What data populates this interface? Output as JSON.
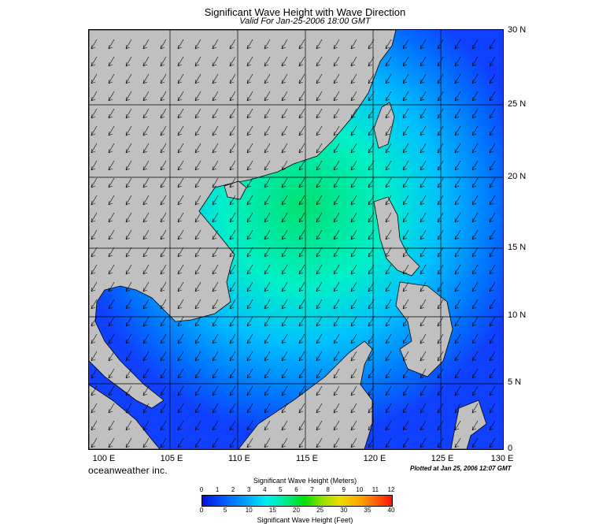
{
  "header": {
    "title": "Significant Wave Height with Wave Direction",
    "subtitle": "Valid For Jan-25-2006 18:00 GMT"
  },
  "map": {
    "lon_labels": [
      "100 E",
      "105 E",
      "110 E",
      "115 E",
      "120 E",
      "125 E",
      "130 E"
    ],
    "lat_labels": [
      "30 N",
      "25 N",
      "20 N",
      "15 N",
      "10 N",
      "5 N",
      "0"
    ],
    "land_color": "#c0c0c0",
    "ocean_low_color": "#1d5bff",
    "ocean_high_color": "#00e66b"
  },
  "footer": {
    "brand": "oceanweather inc.",
    "plotted": "Plotted at Jan 25, 2006 12:07 GMT"
  },
  "colorbar": {
    "title_meters": "Significant Wave Height (Meters)",
    "title_feet": "Significant Wave Height (Feet)",
    "meter_ticks": [
      "0",
      "1",
      "2",
      "3",
      "4",
      "5",
      "6",
      "7",
      "8",
      "9",
      "10",
      "11",
      "12"
    ],
    "feet_ticks": [
      "0",
      "5",
      "10",
      "15",
      "20",
      "25",
      "30",
      "35",
      "40"
    ]
  }
}
